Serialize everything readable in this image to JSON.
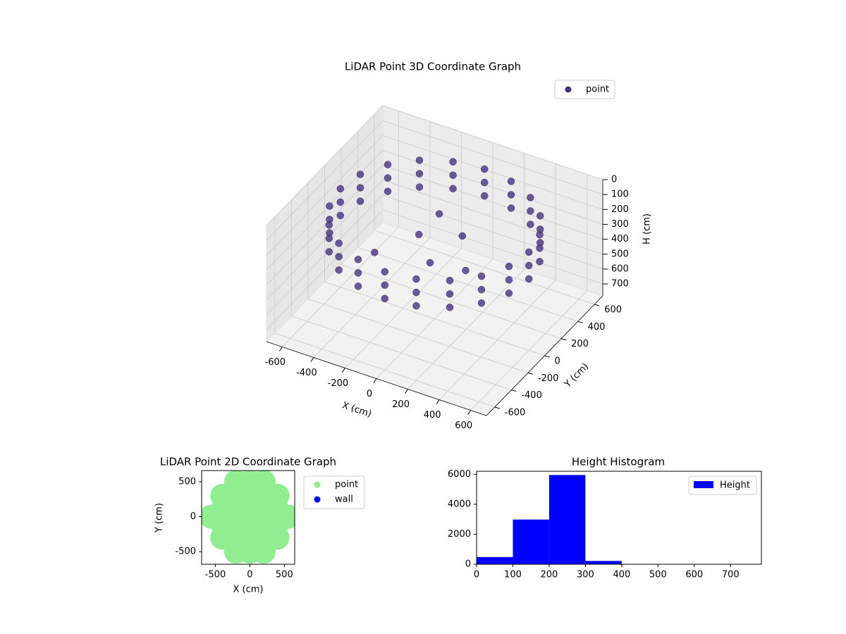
{
  "chart_data": [
    {
      "type": "scatter3d",
      "title": "LiDAR Point 3D Coordinate Graph",
      "xlabel": "X (cm)",
      "ylabel": "Y (cm)",
      "zlabel": "H (cm)",
      "xlim": [
        -700,
        700
      ],
      "ylim": [
        -700,
        700
      ],
      "zlim": [
        0,
        780
      ],
      "zinvert": true,
      "xticks": [
        -600,
        -400,
        -200,
        0,
        200,
        400,
        600
      ],
      "yticks": [
        -600,
        -400,
        -200,
        0,
        200,
        400,
        600
      ],
      "zticks": [
        0,
        100,
        200,
        300,
        400,
        500,
        600,
        700
      ],
      "grid": true,
      "legend": "upper right",
      "series": [
        {
          "name": "point",
          "color": "#46327e",
          "x": [
            600,
            571,
            485,
            353,
            185,
            0,
            -185,
            -353,
            -485,
            -571,
            -600,
            -571,
            -485,
            -353,
            -185,
            0,
            185,
            353,
            485,
            571,
            600,
            571,
            485,
            353,
            185,
            0,
            -185,
            -353,
            -485,
            -571,
            -600,
            -571,
            -485,
            -353,
            -185,
            0,
            185,
            353,
            485,
            571,
            600,
            571,
            485,
            353,
            185,
            0,
            -185,
            -353,
            -485,
            -571,
            -600,
            -571,
            -485,
            -353,
            -185,
            0,
            185,
            353,
            485,
            571,
            -100,
            50,
            150,
            -250,
            250,
            -50
          ],
          "y": [
            0,
            185,
            353,
            485,
            571,
            600,
            571,
            485,
            353,
            185,
            0,
            -185,
            -353,
            -485,
            -571,
            -600,
            -571,
            -485,
            -353,
            -185,
            0,
            185,
            353,
            485,
            571,
            600,
            571,
            485,
            353,
            185,
            0,
            -185,
            -353,
            -485,
            -571,
            -600,
            -571,
            -485,
            -353,
            -185,
            0,
            185,
            353,
            485,
            571,
            600,
            571,
            485,
            353,
            185,
            0,
            -185,
            -353,
            -485,
            -571,
            -600,
            -571,
            -485,
            -353,
            -185,
            0,
            -150,
            50,
            -250,
            -100,
            150
          ],
          "h": [
            120,
            120,
            120,
            120,
            120,
            120,
            120,
            120,
            120,
            120,
            120,
            120,
            120,
            120,
            120,
            120,
            120,
            120,
            120,
            120,
            210,
            210,
            210,
            210,
            210,
            210,
            210,
            210,
            210,
            210,
            210,
            210,
            210,
            210,
            210,
            210,
            210,
            210,
            210,
            210,
            300,
            300,
            300,
            300,
            300,
            300,
            300,
            300,
            300,
            300,
            300,
            300,
            300,
            300,
            300,
            300,
            300,
            300,
            300,
            300,
            250,
            300,
            200,
            280,
            310,
            180
          ]
        }
      ]
    },
    {
      "type": "scatter",
      "title": "LiDAR Point 2D Coordinate Graph",
      "xlabel": "X (cm)",
      "ylabel": "Y (cm)",
      "xlim": [
        -700,
        650
      ],
      "ylim": [
        -680,
        660
      ],
      "xticks": [
        -500,
        0,
        500
      ],
      "yticks": [
        -500,
        0,
        500
      ],
      "legend": "outside right",
      "series": [
        {
          "name": "point",
          "color": "#90ee90",
          "x": [
            -200,
            0,
            200,
            -400,
            -200,
            0,
            200,
            400,
            -400,
            -200,
            0,
            200,
            400,
            -400,
            -200,
            0,
            200,
            400,
            -400,
            -200,
            0,
            200,
            400,
            -200,
            0,
            200,
            -560,
            560
          ],
          "y": [
            -500,
            -500,
            -500,
            -300,
            -300,
            -300,
            -300,
            -300,
            -100,
            -100,
            -100,
            -100,
            -100,
            100,
            100,
            100,
            100,
            100,
            300,
            300,
            300,
            300,
            300,
            500,
            500,
            500,
            0,
            0
          ]
        },
        {
          "name": "wall",
          "color": "#0000ff",
          "x": [],
          "y": []
        }
      ]
    },
    {
      "type": "histogram",
      "title": "Height Histogram",
      "bins": [
        0,
        100,
        200,
        300,
        400,
        500,
        600,
        700,
        800
      ],
      "counts": [
        480,
        2980,
        5950,
        220,
        10,
        5,
        5,
        3
      ],
      "xlim": [
        0,
        785
      ],
      "ylim": [
        0,
        6200
      ],
      "xticks": [
        0,
        100,
        200,
        300,
        400,
        500,
        600,
        700
      ],
      "yticks": [
        0,
        2000,
        4000,
        6000
      ],
      "legend": "upper right",
      "series_name": "Height",
      "color": "#0000ff"
    }
  ]
}
